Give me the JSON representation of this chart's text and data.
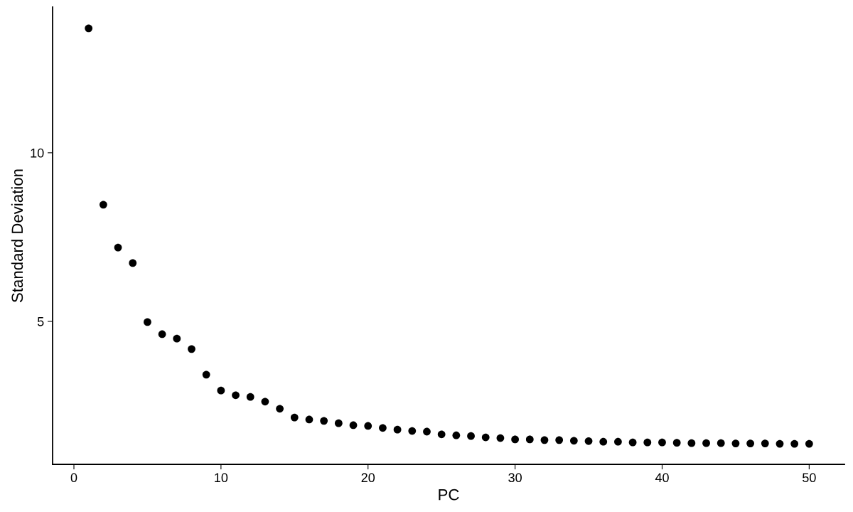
{
  "chart_data": {
    "type": "scatter",
    "xlabel": "PC",
    "ylabel": "Standard Deviation",
    "x": [
      1,
      2,
      3,
      4,
      5,
      6,
      7,
      8,
      9,
      10,
      11,
      12,
      13,
      14,
      15,
      16,
      17,
      18,
      19,
      20,
      21,
      22,
      23,
      24,
      25,
      26,
      27,
      28,
      29,
      30,
      31,
      32,
      33,
      34,
      35,
      36,
      37,
      38,
      39,
      40,
      41,
      42,
      43,
      44,
      45,
      46,
      47,
      48,
      49,
      50
    ],
    "series": [
      {
        "color": "#000000",
        "values": [
          13.69,
          8.46,
          7.19,
          6.73,
          4.98,
          4.62,
          4.49,
          4.18,
          3.42,
          2.95,
          2.81,
          2.76,
          2.62,
          2.41,
          2.15,
          2.09,
          2.05,
          1.98,
          1.92,
          1.9,
          1.84,
          1.79,
          1.75,
          1.73,
          1.65,
          1.62,
          1.6,
          1.56,
          1.54,
          1.5,
          1.5,
          1.48,
          1.48,
          1.46,
          1.45,
          1.43,
          1.43,
          1.41,
          1.41,
          1.41,
          1.4,
          1.39,
          1.39,
          1.39,
          1.38,
          1.38,
          1.38,
          1.37,
          1.37,
          1.37
        ]
      }
    ],
    "xlim": [
      -1.45,
      52.4
    ],
    "ylim": [
      0.76,
      14.32
    ],
    "xticks": [
      0,
      10,
      20,
      30,
      40,
      50
    ],
    "yticks": [
      5,
      10
    ],
    "grid": false,
    "marker": "circle"
  }
}
